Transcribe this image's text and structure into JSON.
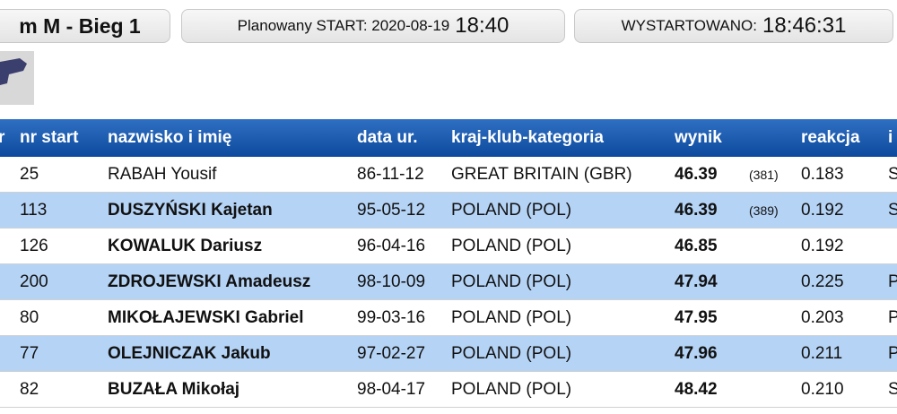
{
  "header": {
    "event": "m M - Bieg 1",
    "planned_label": "Planowany START: 2020-08-19",
    "planned_time": "18:40",
    "started_label": "WYSTARTOWANO:",
    "started_time": "18:46:31"
  },
  "table": {
    "columns": [
      "r",
      "nr start",
      "nazwisko i imię",
      "data ur.",
      "kraj-klub-kategoria",
      "wynik",
      "reakcja",
      "i"
    ],
    "rows": [
      {
        "nr": "25",
        "name": "RABAH Yousif",
        "born": "86-11-12",
        "country": "GREAT BRITAIN (GBR)",
        "result": "46.39",
        "rank": "(381)",
        "reaction": "0.183",
        "extra": "S"
      },
      {
        "nr": "113",
        "name": "DUSZYŃSKI Kajetan",
        "born": "95-05-12",
        "country": "POLAND (POL)",
        "result": "46.39",
        "rank": "(389)",
        "reaction": "0.192",
        "extra": "S"
      },
      {
        "nr": "126",
        "name": "KOWALUK Dariusz",
        "born": "96-04-16",
        "country": "POLAND (POL)",
        "result": "46.85",
        "rank": null,
        "reaction": "0.192",
        "extra": null
      },
      {
        "nr": "200",
        "name": "ZDROJEWSKI Amadeusz",
        "born": "98-10-09",
        "country": "POLAND (POL)",
        "result": "47.94",
        "rank": null,
        "reaction": "0.225",
        "extra": "P"
      },
      {
        "nr": "80",
        "name": "MIKOŁAJEWSKI Gabriel",
        "born": "99-03-16",
        "country": "POLAND (POL)",
        "result": "47.95",
        "rank": null,
        "reaction": "0.203",
        "extra": "P"
      },
      {
        "nr": "77",
        "name": "OLEJNICZAK Jakub",
        "born": "97-02-27",
        "country": "POLAND (POL)",
        "result": "47.96",
        "rank": null,
        "reaction": "0.211",
        "extra": "P"
      },
      {
        "nr": "82",
        "name": "BUZAŁA Mikołaj",
        "born": "98-04-17",
        "country": "POLAND (POL)",
        "result": "48.42",
        "rank": null,
        "reaction": "0.210",
        "extra": "S"
      }
    ]
  }
}
